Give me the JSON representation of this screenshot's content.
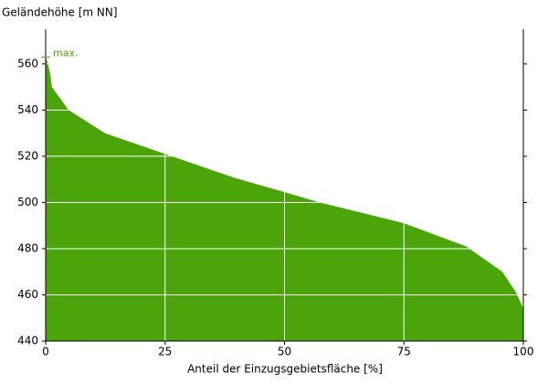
{
  "chart_data": {
    "type": "area",
    "y_label": "Geländehöhe [m NN]",
    "x_label": "Anteil der Einzugsgebietsfläche [%]",
    "x": [
      0,
      0.5,
      1,
      1.3,
      4.8,
      12.4,
      25,
      39.8,
      50,
      57.4,
      75,
      88,
      95.6,
      98.5,
      100
    ],
    "values": [
      563,
      560,
      555,
      550,
      540,
      530,
      521,
      510.5,
      504.5,
      500,
      491,
      481,
      470,
      461,
      454
    ],
    "color": "#4aa40a",
    "xlim": [
      0,
      100
    ],
    "xticks": [
      0,
      25,
      50,
      75,
      100
    ],
    "ylim": [
      440,
      575
    ],
    "yticks": [
      440,
      460,
      480,
      500,
      520,
      540,
      560
    ],
    "grid": true,
    "max_value": 563,
    "max_label": "max."
  }
}
